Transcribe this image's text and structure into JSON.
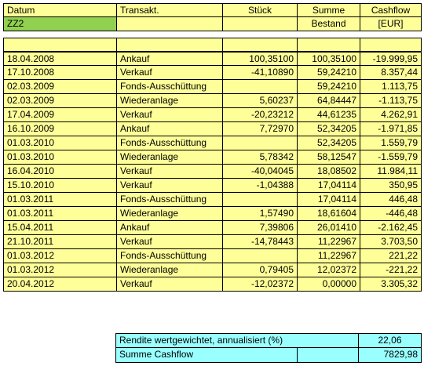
{
  "header": {
    "datum": "Datum",
    "transakt": "Transakt.",
    "stueck": "Stück",
    "summe": "Summe",
    "cashflow": "Cashflow"
  },
  "subheader": {
    "fund": "ZZ2",
    "bestand": "Bestand",
    "unit": "[EUR]"
  },
  "rows": [
    {
      "date": "18.04.2008",
      "type": "Ankauf",
      "units": "100,35100",
      "sum": "100,35100",
      "cashflow": "-19.999,95"
    },
    {
      "date": "17.10.2008",
      "type": "Verkauf",
      "units": "-41,10890",
      "sum": "59,24210",
      "cashflow": "8.357,44"
    },
    {
      "date": "02.03.2009",
      "type": "Fonds-Ausschüttung",
      "units": "",
      "sum": "59,24210",
      "cashflow": "1.113,75"
    },
    {
      "date": "02.03.2009",
      "type": "Wiederanlage",
      "units": "5,60237",
      "sum": "64,84447",
      "cashflow": "-1.113,75"
    },
    {
      "date": "17.04.2009",
      "type": "Verkauf",
      "units": "-20,23212",
      "sum": "44,61235",
      "cashflow": "4.262,91"
    },
    {
      "date": "16.10.2009",
      "type": "Ankauf",
      "units": "7,72970",
      "sum": "52,34205",
      "cashflow": "-1.971,85"
    },
    {
      "date": "01.03.2010",
      "type": "Fonds-Ausschüttung",
      "units": "",
      "sum": "52,34205",
      "cashflow": "1.559,79"
    },
    {
      "date": "01.03.2010",
      "type": "Wiederanlage",
      "units": "5,78342",
      "sum": "58,12547",
      "cashflow": "-1.559,79"
    },
    {
      "date": "16.04.2010",
      "type": "Verkauf",
      "units": "-40,04045",
      "sum": "18,08502",
      "cashflow": "11.984,11"
    },
    {
      "date": "15.10.2010",
      "type": "Verkauf",
      "units": "-1,04388",
      "sum": "17,04114",
      "cashflow": "350,95"
    },
    {
      "date": "01.03.2011",
      "type": "Fonds-Ausschüttung",
      "units": "",
      "sum": "17,04114",
      "cashflow": "446,48"
    },
    {
      "date": "01.03.2011",
      "type": "Wiederanlage",
      "units": "1,57490",
      "sum": "18,61604",
      "cashflow": "-446,48"
    },
    {
      "date": "15.04.2011",
      "type": "Ankauf",
      "units": "7,39806",
      "sum": "26,01410",
      "cashflow": "-2.162,45"
    },
    {
      "date": "21.10.2011",
      "type": "Verkauf",
      "units": "-14,78443",
      "sum": "11,22967",
      "cashflow": "3.703,50"
    },
    {
      "date": "01.03.2012",
      "type": "Fonds-Ausschüttung",
      "units": "",
      "sum": "11,22967",
      "cashflow": "221,22"
    },
    {
      "date": "01.03.2012",
      "type": "Wiederanlage",
      "units": "0,79405",
      "sum": "12,02372",
      "cashflow": "-221,22"
    },
    {
      "date": "20.04.2012",
      "type": "Verkauf",
      "units": "-12,02372",
      "sum": "0,00000",
      "cashflow": "3.305,32"
    }
  ],
  "summary": {
    "rendite_label": "Rendite wertgewichtet, annualisiert (%)",
    "rendite_value": "22,06",
    "cashflow_label": "Summe Cashflow",
    "cashflow_value": "7829,98"
  },
  "colors": {
    "header_bg": "#ffff99",
    "fund_bg": "#92d050",
    "summary_bg": "#99ffff"
  }
}
